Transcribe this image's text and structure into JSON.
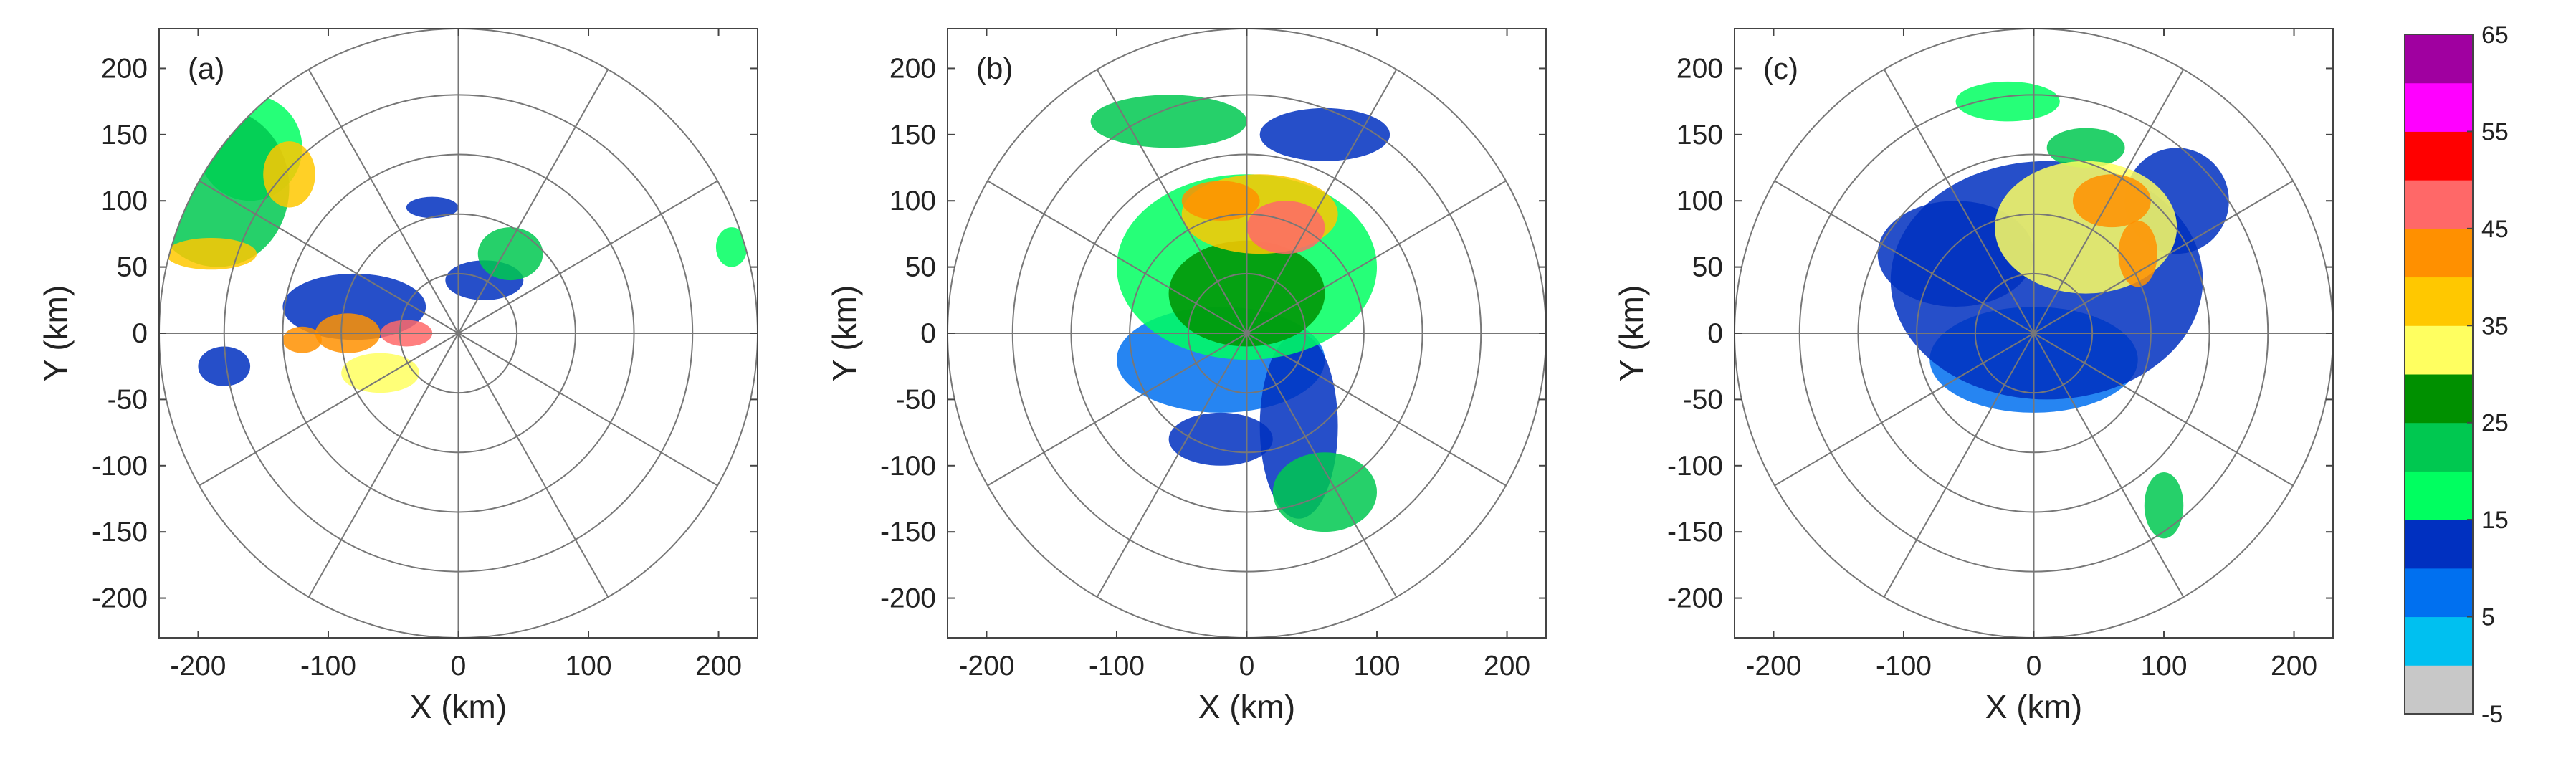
{
  "chart_data": [
    {
      "type": "polar-radar-reflectivity",
      "panel_label": "(a)",
      "xlabel": "X (km)",
      "ylabel": "Y (km)",
      "xlim": [
        -230,
        230
      ],
      "ylim": [
        -230,
        230
      ],
      "xticks": [
        -200,
        -100,
        0,
        100,
        200
      ],
      "yticks": [
        200,
        150,
        100,
        50,
        0,
        -50,
        -100,
        -150,
        -200
      ],
      "range_rings_km": [
        45,
        90,
        135,
        180,
        230
      ],
      "spoke_angles_deg": [
        0,
        30,
        60,
        90,
        120,
        150,
        180,
        210,
        240,
        270,
        300,
        330
      ],
      "echo_regions": [
        {
          "x": -185,
          "y": 110,
          "rx": 55,
          "ry": 60,
          "dbz": 22
        },
        {
          "x": -160,
          "y": 140,
          "rx": 40,
          "ry": 40,
          "dbz": 18
        },
        {
          "x": -130,
          "y": 120,
          "rx": 20,
          "ry": 25,
          "dbz": 37
        },
        {
          "x": -190,
          "y": 60,
          "rx": 35,
          "ry": 12,
          "dbz": 35
        },
        {
          "x": -80,
          "y": 20,
          "rx": 55,
          "ry": 25,
          "dbz": 12
        },
        {
          "x": -85,
          "y": 0,
          "rx": 25,
          "ry": 15,
          "dbz": 40
        },
        {
          "x": -40,
          "y": 0,
          "rx": 20,
          "ry": 10,
          "dbz": 45
        },
        {
          "x": -60,
          "y": -30,
          "rx": 30,
          "ry": 15,
          "dbz": 33
        },
        {
          "x": -120,
          "y": -5,
          "rx": 15,
          "ry": 10,
          "dbz": 40
        },
        {
          "x": 40,
          "y": 60,
          "rx": 25,
          "ry": 20,
          "dbz": 20
        },
        {
          "x": 20,
          "y": 40,
          "rx": 30,
          "ry": 15,
          "dbz": 12
        },
        {
          "x": -20,
          "y": 95,
          "rx": 20,
          "ry": 8,
          "dbz": 12
        },
        {
          "x": 210,
          "y": 65,
          "rx": 12,
          "ry": 15,
          "dbz": 18
        },
        {
          "x": -180,
          "y": -25,
          "rx": 20,
          "ry": 15,
          "dbz": 12
        }
      ]
    },
    {
      "type": "polar-radar-reflectivity",
      "panel_label": "(b)",
      "xlabel": "X (km)",
      "ylabel": "Y (km)",
      "xlim": [
        -230,
        230
      ],
      "ylim": [
        -230,
        230
      ],
      "xticks": [
        -200,
        -100,
        0,
        100,
        200
      ],
      "yticks": [
        200,
        150,
        100,
        50,
        0,
        -50,
        -100,
        -150,
        -200
      ],
      "range_rings_km": [
        45,
        90,
        135,
        180,
        230
      ],
      "spoke_angles_deg": [
        0,
        30,
        60,
        90,
        120,
        150,
        180,
        210,
        240,
        270,
        300,
        330
      ],
      "echo_regions": [
        {
          "x": 0,
          "y": 50,
          "rx": 100,
          "ry": 70,
          "dbz": 15
        },
        {
          "x": 10,
          "y": 90,
          "rx": 60,
          "ry": 30,
          "dbz": 38
        },
        {
          "x": 30,
          "y": 80,
          "rx": 30,
          "ry": 20,
          "dbz": 48
        },
        {
          "x": -20,
          "y": 100,
          "rx": 30,
          "ry": 15,
          "dbz": 42
        },
        {
          "x": 0,
          "y": 30,
          "rx": 60,
          "ry": 40,
          "dbz": 26
        },
        {
          "x": -60,
          "y": 160,
          "rx": 60,
          "ry": 20,
          "dbz": 22
        },
        {
          "x": 60,
          "y": 150,
          "rx": 50,
          "ry": 20,
          "dbz": 12
        },
        {
          "x": 40,
          "y": -70,
          "rx": 30,
          "ry": 70,
          "dbz": 14
        },
        {
          "x": 60,
          "y": -120,
          "rx": 40,
          "ry": 30,
          "dbz": 22
        },
        {
          "x": -20,
          "y": -20,
          "rx": 80,
          "ry": 40,
          "dbz": 5
        },
        {
          "x": -20,
          "y": -80,
          "rx": 40,
          "ry": 20,
          "dbz": 10
        }
      ]
    },
    {
      "type": "polar-radar-reflectivity",
      "panel_label": "(c)",
      "xlabel": "X (km)",
      "ylabel": "Y (km)",
      "xlim": [
        -230,
        230
      ],
      "ylim": [
        -230,
        230
      ],
      "xticks": [
        -200,
        -100,
        0,
        100,
        200
      ],
      "yticks": [
        200,
        150,
        100,
        50,
        0,
        -50,
        -100,
        -150,
        -200
      ],
      "range_rings_km": [
        45,
        90,
        135,
        180,
        230
      ],
      "spoke_angles_deg": [
        0,
        30,
        60,
        90,
        120,
        150,
        180,
        210,
        240,
        270,
        300,
        330
      ],
      "echo_regions": [
        {
          "x": 10,
          "y": 40,
          "rx": 120,
          "ry": 90,
          "dbz": 12
        },
        {
          "x": 40,
          "y": 80,
          "rx": 70,
          "ry": 50,
          "dbz": 34
        },
        {
          "x": 60,
          "y": 100,
          "rx": 30,
          "ry": 20,
          "dbz": 44
        },
        {
          "x": 80,
          "y": 60,
          "rx": 15,
          "ry": 25,
          "dbz": 42
        },
        {
          "x": -60,
          "y": 60,
          "rx": 60,
          "ry": 40,
          "dbz": 14
        },
        {
          "x": 0,
          "y": -20,
          "rx": 80,
          "ry": 40,
          "dbz": 5
        },
        {
          "x": 110,
          "y": 100,
          "rx": 40,
          "ry": 40,
          "dbz": 12
        },
        {
          "x": 100,
          "y": -130,
          "rx": 15,
          "ry": 25,
          "dbz": 22
        },
        {
          "x": -20,
          "y": 175,
          "rx": 40,
          "ry": 15,
          "dbz": 15
        },
        {
          "x": 40,
          "y": 140,
          "rx": 30,
          "ry": 15,
          "dbz": 20
        }
      ]
    }
  ],
  "colorbar": {
    "ticks": [
      "65",
      "55",
      "45",
      "35",
      "25",
      "15",
      "5",
      "-5"
    ],
    "levels": [
      -5,
      0,
      5,
      10,
      15,
      20,
      25,
      30,
      35,
      40,
      45,
      50,
      55,
      60,
      65
    ],
    "colors": [
      "#c8c8c8",
      "#00c0f0",
      "#0070f0",
      "#0030c0",
      "#00ff60",
      "#00c850",
      "#009000",
      "#ffff60",
      "#ffc800",
      "#ff9000",
      "#ff6868",
      "#ff0000",
      "#ff00ff",
      "#a000a0"
    ]
  }
}
